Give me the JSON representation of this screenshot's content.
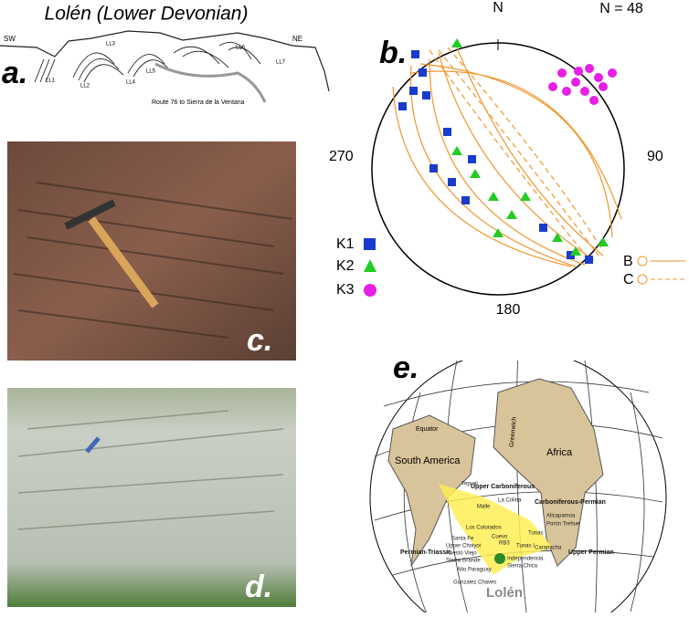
{
  "panel_a": {
    "label": "a.",
    "title": "Lolén (Lower Devonian)",
    "sw": "SW",
    "ne": "NE",
    "sites": [
      "LL1",
      "LL2",
      "LL3",
      "LL4",
      "LL5",
      "LL6",
      "LL7"
    ],
    "route": "Route 76 to Sierra de la Ventana"
  },
  "panel_b": {
    "label": "b.",
    "north": "N",
    "count": "N = 48",
    "east": "90",
    "south": "180",
    "west": "270",
    "legend": [
      "K1",
      "K2",
      "K3"
    ],
    "lines": [
      "B",
      "C"
    ]
  },
  "panel_c": {
    "label": "c."
  },
  "panel_d": {
    "label": "d."
  },
  "panel_e": {
    "label": "e.",
    "equator": "Equator",
    "meridian": "Greenwich",
    "continents": [
      "South America",
      "Africa"
    ],
    "periods": [
      "Upper Carboniferous",
      "Carboniferous-Permian",
      "Upper Permian",
      "Permian-Triassic"
    ],
    "localities": [
      "Tepuel",
      "La Colina",
      "Malle",
      "Alicapamoa",
      "Porón Trehue",
      "Los Colorados",
      "Tunas",
      "Santa Fe",
      "Cuevo",
      "RB3",
      "Upper Choiyoi",
      "Puesto Viejo",
      "Sierra Grande",
      "Tunas I",
      "Carapacha",
      "Independencia",
      "Sierra Chica",
      "Alto Paraguay",
      "Gonzalez Chaves"
    ],
    "site": "Lolén"
  }
}
